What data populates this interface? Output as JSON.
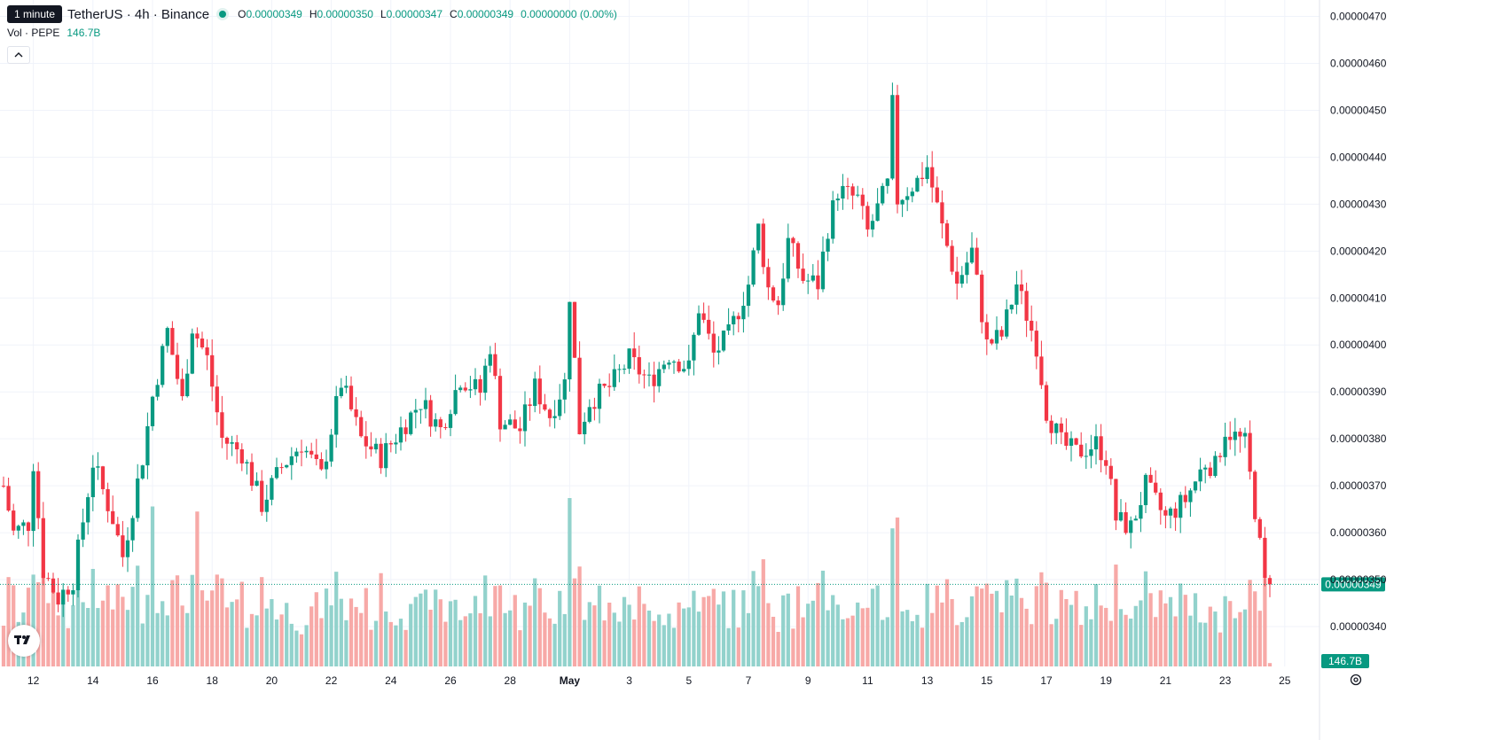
{
  "header": {
    "tooltip": "1 minute",
    "symbol": "TetherUS · 4h · Binance",
    "o_label": "O",
    "o_value": "0.00000349",
    "h_label": "H",
    "h_value": "0.00000350",
    "l_label": "L",
    "l_value": "0.00000347",
    "c_label": "C",
    "c_value": "0.00000349",
    "change": "0.00000000 (0.00%)"
  },
  "volume_legend": {
    "label": "Vol · PEPE",
    "value": "146.7B"
  },
  "colors": {
    "up": "#089981",
    "down": "#f23645",
    "vol_up": "#92d2cc",
    "vol_down": "#f7a9a7",
    "grid": "#f0f3fa",
    "text": "#131722"
  },
  "icons": {
    "collapse": "chevron-up-icon",
    "logo": "tradingview-logo-icon",
    "settings": "gear-icon"
  },
  "chart_data": {
    "type": "candlestick",
    "interval": "4h",
    "y_axis": {
      "range": [
        3.315e-06,
        4.735e-06
      ],
      "ticks": [
        "0.00000340",
        "0.00000350",
        "0.00000360",
        "0.00000370",
        "0.00000380",
        "0.00000390",
        "0.00000400",
        "0.00000410",
        "0.00000420",
        "0.00000430",
        "0.00000440",
        "0.00000450",
        "0.00000460",
        "0.00000470"
      ]
    },
    "x_axis": {
      "ticks": [
        "12",
        "14",
        "16",
        "18",
        "20",
        "22",
        "24",
        "26",
        "28",
        "May",
        "3",
        "5",
        "7",
        "9",
        "11",
        "13",
        "15",
        "17",
        "19",
        "21",
        "23",
        "25"
      ]
    },
    "last_price_label": "0.00000349",
    "volume_label": "146.7B",
    "anchors": [
      {
        "x": "Apr 11 00:00",
        "close": 3.7
      },
      {
        "x": "Apr 11 08:00",
        "close": 3.6
      },
      {
        "x": "Apr 11 20:00",
        "close": 3.62
      },
      {
        "x": "Apr 12 00:00",
        "close": 3.75
      },
      {
        "x": "Apr 12 08:00",
        "close": 3.52
      },
      {
        "x": "Apr 12 20:00",
        "close": 3.46
      },
      {
        "x": "Apr 13 08:00",
        "close": 3.5
      },
      {
        "x": "Apr 14 00:00",
        "close": 3.75
      },
      {
        "x": "Apr 14 16:00",
        "close": 3.63
      },
      {
        "x": "Apr 15 00:00",
        "close": 3.55
      },
      {
        "x": "Apr 15 16:00",
        "close": 3.76
      },
      {
        "x": "Apr 16 00:00",
        "close": 3.89
      },
      {
        "x": "Apr 16 12:00",
        "close": 4.03
      },
      {
        "x": "Apr 17 00:00",
        "close": 3.88
      },
      {
        "x": "Apr 17 08:00",
        "close": 4.04
      },
      {
        "x": "Apr 17 20:00",
        "close": 3.97
      },
      {
        "x": "Apr 18 08:00",
        "close": 3.8
      },
      {
        "x": "Apr 19 00:00",
        "close": 3.77
      },
      {
        "x": "Apr 19 16:00",
        "close": 3.66
      },
      {
        "x": "Apr 20 08:00",
        "close": 3.74
      },
      {
        "x": "Apr 21 00:00",
        "close": 3.79
      },
      {
        "x": "Apr 21 16:00",
        "close": 3.72
      },
      {
        "x": "Apr 22 08:00",
        "close": 3.92
      },
      {
        "x": "Apr 23 00:00",
        "close": 3.8
      },
      {
        "x": "Apr 23 16:00",
        "close": 3.76
      },
      {
        "x": "Apr 24 08:00",
        "close": 3.82
      },
      {
        "x": "Apr 25 00:00",
        "close": 3.88
      },
      {
        "x": "Apr 25 16:00",
        "close": 3.82
      },
      {
        "x": "Apr 26 08:00",
        "close": 3.93
      },
      {
        "x": "Apr 27 00:00",
        "close": 3.9
      },
      {
        "x": "Apr 27 08:00",
        "close": 4.0
      },
      {
        "x": "Apr 27 16:00",
        "close": 3.84
      },
      {
        "x": "Apr 28 08:00",
        "close": 3.82
      },
      {
        "x": "Apr 28 20:00",
        "close": 3.91
      },
      {
        "x": "Apr 29 08:00",
        "close": 3.85
      },
      {
        "x": "Apr 29 20:00",
        "close": 3.92
      },
      {
        "x": "Apr 30 00:00",
        "close": 4.11
      },
      {
        "x": "Apr 30 08:00",
        "close": 3.82
      },
      {
        "x": "Apr 30 16:00",
        "close": 3.88
      },
      {
        "x": "May 1 08:00",
        "close": 3.91
      },
      {
        "x": "May 2 00:00",
        "close": 3.97
      },
      {
        "x": "May 2 16:00",
        "close": 3.92
      },
      {
        "x": "May 3 08:00",
        "close": 3.98
      },
      {
        "x": "May 4 00:00",
        "close": 3.95
      },
      {
        "x": "May 4 08:00",
        "close": 4.08
      },
      {
        "x": "May 4 20:00",
        "close": 3.98
      },
      {
        "x": "May 5 08:00",
        "close": 4.02
      },
      {
        "x": "May 6 00:00",
        "close": 4.13
      },
      {
        "x": "May 6 08:00",
        "close": 4.25
      },
      {
        "x": "May 6 16:00",
        "close": 4.12
      },
      {
        "x": "May 7 00:00",
        "close": 4.09
      },
      {
        "x": "May 7 08:00",
        "close": 4.22
      },
      {
        "x": "May 7 20:00",
        "close": 4.14
      },
      {
        "x": "May 8 08:00",
        "close": 4.13
      },
      {
        "x": "May 8 16:00",
        "close": 4.25
      },
      {
        "x": "May 9 00:00",
        "close": 4.33
      },
      {
        "x": "May 9 16:00",
        "close": 4.31
      },
      {
        "x": "May 10 00:00",
        "close": 4.24
      },
      {
        "x": "May 10 16:00",
        "close": 4.34
      },
      {
        "x": "May 10 20:00",
        "close": 4.51
      },
      {
        "x": "May 11 00:00",
        "close": 4.31
      },
      {
        "x": "May 11 16:00",
        "close": 4.35
      },
      {
        "x": "May 12 00:00",
        "close": 4.38
      },
      {
        "x": "May 12 12:00",
        "close": 4.25
      },
      {
        "x": "May 13 00:00",
        "close": 4.13
      },
      {
        "x": "May 13 12:00",
        "close": 4.2
      },
      {
        "x": "May 14 00:00",
        "close": 4.0
      },
      {
        "x": "May 14 12:00",
        "close": 4.02
      },
      {
        "x": "May 15 00:00",
        "close": 4.13
      },
      {
        "x": "May 15 16:00",
        "close": 4.0
      },
      {
        "x": "May 16 00:00",
        "close": 3.86
      },
      {
        "x": "May 16 12:00",
        "close": 3.79
      },
      {
        "x": "May 17 00:00",
        "close": 3.77
      },
      {
        "x": "May 17 16:00",
        "close": 3.79
      },
      {
        "x": "May 18 00:00",
        "close": 3.76
      },
      {
        "x": "May 18 08:00",
        "close": 3.63
      },
      {
        "x": "May 18 20:00",
        "close": 3.61
      },
      {
        "x": "May 19 08:00",
        "close": 3.7
      },
      {
        "x": "May 20 00:00",
        "close": 3.63
      },
      {
        "x": "May 20 16:00",
        "close": 3.67
      },
      {
        "x": "May 21 08:00",
        "close": 3.75
      },
      {
        "x": "May 21 16:00",
        "close": 3.74
      },
      {
        "x": "May 22 00:00",
        "close": 3.82
      },
      {
        "x": "May 22 16:00",
        "close": 3.79
      },
      {
        "x": "May 23 00:00",
        "close": 3.65
      },
      {
        "x": "May 23 08:00",
        "close": 3.49
      },
      {
        "x": "May 23 12:00",
        "close": 3.49
      }
    ],
    "volume_spikes": [
      {
        "x": "Apr 16 00:00",
        "relative": 0.95
      },
      {
        "x": "Apr 17 12:00",
        "relative": 0.92
      },
      {
        "x": "Apr 30 00:00",
        "relative": 1.0
      },
      {
        "x": "May 10 20:00",
        "relative": 0.82
      }
    ]
  }
}
